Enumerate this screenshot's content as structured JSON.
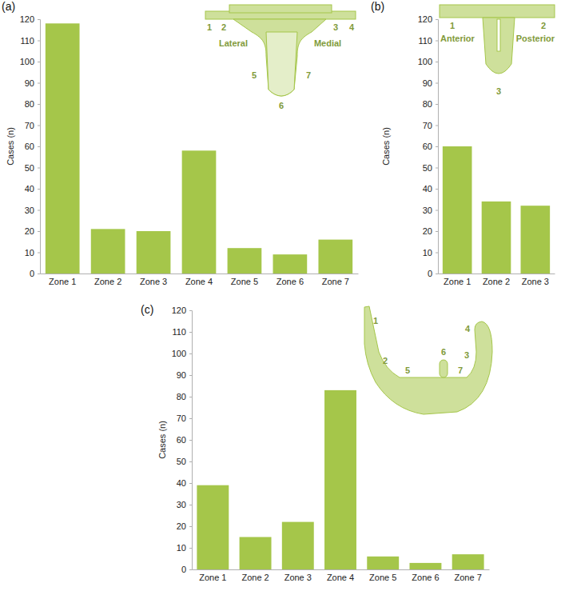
{
  "chart_data": [
    {
      "type": "bar",
      "title": "(a)",
      "y_label": "Cases (n)",
      "categories": [
        "Zone 1",
        "Zone 2",
        "Zone 3",
        "Zone 4",
        "Zone 5",
        "Zone 6",
        "Zone 7"
      ],
      "values": [
        118,
        21,
        20,
        58,
        12,
        9,
        16
      ],
      "color": "#a5c64a",
      "ylim": [
        0,
        120
      ],
      "yticks": [
        0,
        10,
        20,
        30,
        40,
        50,
        60,
        70,
        80,
        90,
        100,
        110,
        120
      ],
      "annotations": [
        "1",
        "2",
        "3",
        "4",
        "5",
        "6",
        "7",
        "Lateral",
        "Medial"
      ]
    },
    {
      "type": "bar",
      "title": "(b)",
      "y_label": "Cases (n)",
      "categories": [
        "Zone 1",
        "Zone 2",
        "Zone 3"
      ],
      "values": [
        60,
        34,
        32
      ],
      "color": "#a5c64a",
      "ylim": [
        0,
        120
      ],
      "yticks": [
        0,
        10,
        20,
        30,
        40,
        50,
        60,
        70,
        80,
        90,
        100,
        110,
        120
      ],
      "annotations": [
        "1",
        "2",
        "3",
        "Anterior",
        "Posterior"
      ]
    },
    {
      "type": "bar",
      "title": "(c)",
      "y_label": "Cases (n)",
      "categories": [
        "Zone 1",
        "Zone 2",
        "Zone 3",
        "Zone 4",
        "Zone 5",
        "Zone 6",
        "Zone 7"
      ],
      "values": [
        39,
        15,
        22,
        83,
        6,
        3,
        7
      ],
      "color": "#a5c64a",
      "ylim": [
        0,
        120
      ],
      "yticks": [
        0,
        10,
        20,
        30,
        40,
        50,
        60,
        70,
        80,
        90,
        100,
        110,
        120
      ],
      "annotations": [
        "1",
        "2",
        "3",
        "4",
        "5",
        "6",
        "7"
      ]
    }
  ]
}
